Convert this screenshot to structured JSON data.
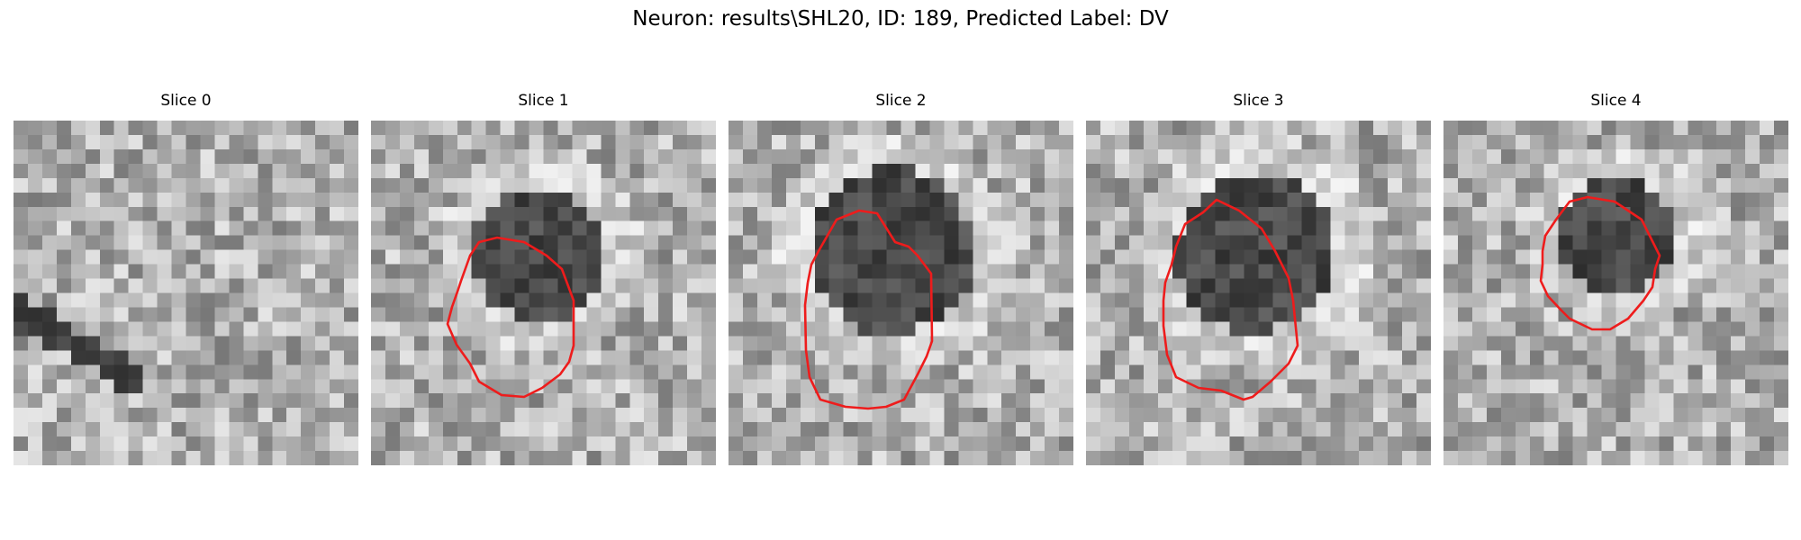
{
  "figure": {
    "title": "Neuron: results\\SHL20, ID: 189, Predicted Label: DV"
  },
  "contour_color": "#ee1c1c",
  "panels": [
    {
      "title": "Slice 0",
      "has_contour": false,
      "seed": 11
    },
    {
      "title": "Slice 1",
      "has_contour": true,
      "seed": 23
    },
    {
      "title": "Slice 2",
      "has_contour": true,
      "seed": 37
    },
    {
      "title": "Slice 3",
      "has_contour": true,
      "seed": 41
    },
    {
      "title": "Slice 4",
      "has_contour": true,
      "seed": 53
    }
  ]
}
